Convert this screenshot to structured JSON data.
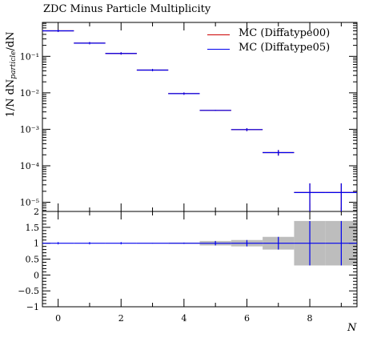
{
  "title": "ZDC Minus Particle Multiplicity",
  "xlabel": "N",
  "ylabel": {
    "prefix": "1/N dN",
    "sub": "particle",
    "suffix": "/dN"
  },
  "legend": [
    {
      "label": "MC (Diffatype00)",
      "color": "#cc0000"
    },
    {
      "label": "MC (Diffatype05)",
      "color": "#0000ee"
    }
  ],
  "chart_data": [
    {
      "type": "line",
      "panel": "main",
      "x_bins": [
        [
          -0.5,
          0.5
        ],
        [
          0.5,
          1.5
        ],
        [
          1.5,
          2.5
        ],
        [
          2.5,
          3.5
        ],
        [
          3.5,
          4.5
        ],
        [
          4.5,
          5.5
        ],
        [
          5.5,
          6.5
        ],
        [
          6.5,
          7.5
        ],
        [
          7.5,
          8.5
        ],
        [
          8.5,
          9.5
        ]
      ],
      "series": [
        {
          "name": "MC (Diffatype00)",
          "values": [
            0.5,
            0.23,
            0.12,
            0.042,
            0.0095,
            0.0033,
            0.00098,
            0.00023,
            1.85e-05,
            1.85e-05
          ],
          "errors": [
            0,
            0,
            0,
            0,
            0,
            0.0001,
            9e-05,
            4e-05,
            1.45e-05,
            1.45e-05
          ]
        },
        {
          "name": "MC (Diffatype05)",
          "values": [
            0.5,
            0.23,
            0.12,
            0.042,
            0.0095,
            0.0033,
            0.00098,
            0.00023,
            1.85e-05,
            1.85e-05
          ],
          "errors": [
            0,
            0,
            0,
            0,
            0,
            0.0001,
            9e-05,
            4e-05,
            1.45e-05,
            1.45e-05
          ]
        }
      ],
      "xlim": [
        -0.5,
        9.5
      ],
      "ylim": [
        5.6e-06,
        0.85
      ],
      "y_scale": "log",
      "y_ticks": [
        "10⁻⁵",
        "10⁻⁴",
        "10⁻³",
        "10⁻²",
        "10⁻¹"
      ]
    },
    {
      "type": "line",
      "panel": "ratio",
      "x_bins": [
        [
          -0.5,
          0.5
        ],
        [
          0.5,
          1.5
        ],
        [
          1.5,
          2.5
        ],
        [
          2.5,
          3.5
        ],
        [
          3.5,
          4.5
        ],
        [
          4.5,
          5.5
        ],
        [
          5.5,
          6.5
        ],
        [
          6.5,
          7.5
        ],
        [
          7.5,
          8.5
        ],
        [
          8.5,
          9.5
        ]
      ],
      "ratio_values": [
        1,
        1,
        1,
        1,
        1,
        1,
        1,
        1,
        1,
        1
      ],
      "ratio_band": [
        0,
        0,
        0,
        0.01,
        0.02,
        0.07,
        0.1,
        0.2,
        0.7,
        0.7
      ],
      "xlim": [
        -0.5,
        9.5
      ],
      "ylim": [
        -1,
        2
      ],
      "y_ticks": [
        "−1",
        "−0.5",
        "0",
        "0.5",
        "1",
        "1.5",
        "2"
      ],
      "x_ticks": [
        "0",
        "2",
        "4",
        "6",
        "8"
      ]
    }
  ]
}
